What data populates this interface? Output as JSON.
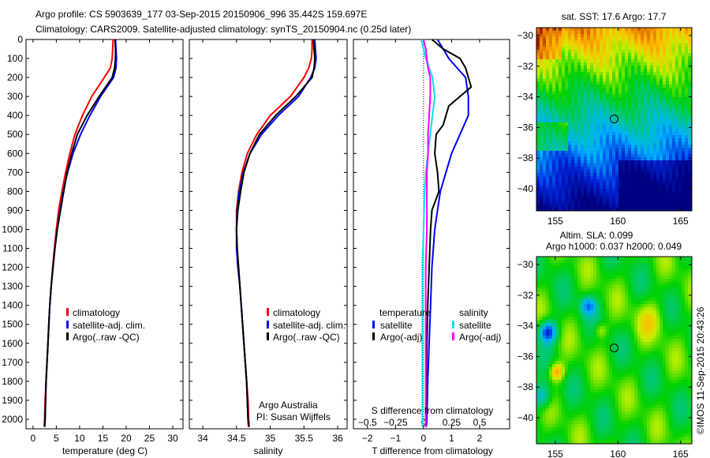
{
  "header": {
    "line1": "Argo profile: CS 5903639_177 03-Sep-2015 20150906_996 35.442S 159.697E",
    "line2": "Climatology: CARS2009. Satellite-adjusted climatology: synTS_20150904.nc (0.25d later)"
  },
  "colors": {
    "climatology": "#ff0000",
    "satellite": "#0000ff",
    "argo": "#000000",
    "sal_satellite": "#00e5ee",
    "sal_argo": "#ff00ff"
  },
  "depth_axis": {
    "ticks": [
      0,
      100,
      200,
      300,
      400,
      500,
      600,
      700,
      800,
      900,
      1000,
      1100,
      1200,
      1300,
      1400,
      1500,
      1600,
      1700,
      1800,
      1900,
      2000
    ],
    "range": [
      0,
      2050
    ]
  },
  "chart_data": [
    {
      "type": "line",
      "id": "temperature",
      "xlabel": "temperature (deg C)",
      "xlim": [
        -1.5,
        32.2
      ],
      "xticks": [
        0,
        5,
        10,
        15,
        20,
        25,
        30
      ],
      "legend": [
        "climatology",
        "satellite-adj. clim.",
        "Argo(..raw -QC)"
      ],
      "series": [
        {
          "name": "climatology",
          "color": "#ff0000",
          "depth": [
            0,
            50,
            100,
            150,
            200,
            300,
            400,
            500,
            600,
            700,
            800,
            900,
            1000,
            1100,
            1200,
            1300,
            1400,
            1500,
            1600,
            1700,
            1800,
            1900,
            2000,
            2040
          ],
          "values": [
            17.2,
            17.1,
            17.0,
            16.6,
            15.3,
            12.6,
            10.6,
            9.0,
            7.9,
            7.0,
            6.2,
            5.5,
            5.0,
            4.6,
            4.2,
            3.9,
            3.6,
            3.4,
            3.2,
            3.0,
            2.8,
            2.6,
            2.5,
            2.4
          ]
        },
        {
          "name": "satellite-adj. clim.",
          "color": "#0000ff",
          "depth": [
            0,
            50,
            100,
            150,
            200,
            300,
            400,
            500,
            600,
            700,
            800,
            900,
            1000,
            1100,
            1200,
            1300,
            1400,
            1500,
            1600,
            1700,
            1800,
            1900,
            2000,
            2040
          ],
          "values": [
            17.7,
            17.8,
            17.9,
            17.8,
            17.3,
            14.5,
            12.2,
            10.2,
            8.6,
            7.4,
            6.5,
            5.8,
            5.2,
            4.7,
            4.3,
            3.9,
            3.6,
            3.4,
            3.2,
            3.0,
            2.8,
            2.7,
            2.6,
            2.5
          ]
        },
        {
          "name": "Argo(..raw -QC)",
          "color": "#000000",
          "depth": [
            0,
            50,
            100,
            150,
            200,
            300,
            400,
            500,
            600,
            700,
            800,
            900,
            1000,
            1100,
            1200,
            1300,
            1400,
            1500,
            1600,
            1700,
            1800,
            1900,
            2000,
            2040
          ],
          "values": [
            17.6,
            17.7,
            17.7,
            17.5,
            17.0,
            14.2,
            11.6,
            9.5,
            8.3,
            7.3,
            6.6,
            5.9,
            5.2,
            4.7,
            4.3,
            3.9,
            3.6,
            3.4,
            3.2,
            3.0,
            2.8,
            2.7,
            2.6,
            2.5
          ]
        }
      ]
    },
    {
      "type": "line",
      "id": "salinity",
      "xlabel": "salinity",
      "xlim": [
        33.8,
        36.14
      ],
      "xticks": [
        34,
        34.5,
        35,
        35.5,
        36
      ],
      "legend": [
        "climatology",
        "satellite-adj. clim.",
        "Argo(..raw -QC)"
      ],
      "annotation": [
        "Argo Australia",
        "PI: Susan Wijffels"
      ],
      "series": [
        {
          "name": "climatology",
          "color": "#ff0000",
          "depth": [
            0,
            50,
            100,
            150,
            200,
            300,
            400,
            500,
            600,
            700,
            800,
            900,
            1000,
            1100,
            1200,
            1300,
            1400,
            1500,
            1600,
            1700,
            1800,
            1900,
            2000,
            2040
          ],
          "values": [
            35.62,
            35.62,
            35.61,
            35.57,
            35.5,
            35.3,
            35.0,
            34.8,
            34.66,
            34.58,
            34.53,
            34.5,
            34.5,
            34.51,
            34.53,
            34.55,
            34.57,
            34.59,
            34.61,
            34.63,
            34.65,
            34.67,
            34.68,
            34.69
          ]
        },
        {
          "name": "satellite-adj. clim.",
          "color": "#0000ff",
          "depth": [
            0,
            50,
            100,
            150,
            200,
            300,
            400,
            500,
            600,
            700,
            800,
            900,
            1000,
            1100,
            1200,
            1300,
            1400,
            1500,
            1600,
            1700,
            1800,
            1900,
            2000,
            2040
          ],
          "values": [
            35.66,
            35.67,
            35.68,
            35.66,
            35.6,
            35.42,
            35.12,
            34.87,
            34.7,
            34.6,
            34.54,
            34.51,
            34.5,
            34.5,
            34.52,
            34.55,
            34.57,
            34.59,
            34.61,
            34.63,
            34.65,
            34.66,
            34.67,
            34.68
          ]
        },
        {
          "name": "Argo(..raw -QC)",
          "color": "#000000",
          "depth": [
            0,
            50,
            100,
            150,
            200,
            300,
            400,
            500,
            600,
            700,
            800,
            900,
            1000,
            1100,
            1200,
            1300,
            1400,
            1500,
            1600,
            1700,
            1800,
            1900,
            2000,
            2040
          ],
          "values": [
            35.64,
            35.65,
            35.66,
            35.65,
            35.62,
            35.38,
            35.08,
            34.84,
            34.7,
            34.61,
            34.56,
            34.52,
            34.5,
            34.51,
            34.53,
            34.55,
            34.57,
            34.59,
            34.61,
            34.63,
            34.65,
            34.66,
            34.67,
            34.68
          ]
        }
      ]
    },
    {
      "type": "line",
      "id": "difference",
      "xlabel": "T difference from climatology",
      "xlabel_top": "S difference from climatology",
      "xlim": [
        -2.5,
        3.07
      ],
      "xticks": [
        -2,
        -1,
        0,
        1,
        2
      ],
      "s_ticks": [
        -0.5,
        -0.25,
        0,
        0.25,
        0.5
      ],
      "s_tick_labels": [
        "-0.5",
        "-0.25",
        "0",
        "0.25",
        "0.5"
      ],
      "legend_temperature": {
        "title": "temperature",
        "items": [
          "satellite",
          "Argo(-adj)"
        ]
      },
      "legend_salinity": {
        "title": "salinity",
        "items": [
          "satellite",
          "Argo(-adj)"
        ]
      },
      "series": [
        {
          "name": "temperature satellite",
          "color": "#0000ff",
          "depth": [
            0,
            50,
            100,
            150,
            200,
            300,
            400,
            500,
            600,
            700,
            800,
            900,
            1000,
            1100,
            1200,
            1400,
            1600,
            1800,
            2000,
            2040
          ],
          "values": [
            0.5,
            0.7,
            0.9,
            1.2,
            1.5,
            1.6,
            1.6,
            1.3,
            1.0,
            0.8,
            0.6,
            0.5,
            0.4,
            0.35,
            0.3,
            0.25,
            0.2,
            0.15,
            0.12,
            0.1
          ]
        },
        {
          "name": "temperature Argo(-adj)",
          "color": "#000000",
          "depth": [
            0,
            50,
            100,
            150,
            200,
            250,
            300,
            350,
            400,
            450,
            500,
            600,
            700,
            800,
            900,
            1000,
            1200,
            1400,
            1600,
            1800,
            2000,
            2040
          ],
          "values": [
            0.3,
            0.7,
            1.3,
            1.5,
            1.6,
            1.7,
            1.3,
            0.9,
            0.8,
            0.7,
            0.45,
            0.4,
            0.5,
            0.55,
            0.3,
            0.25,
            0.2,
            0.15,
            0.12,
            0.1,
            0.08,
            0.08
          ]
        },
        {
          "name": "salinity satellite",
          "color": "#00e5ee",
          "depth": [
            0,
            50,
            100,
            150,
            200,
            300,
            400,
            500,
            600,
            700,
            800,
            1000,
            1200,
            1400,
            1600,
            1800,
            2000,
            2040
          ],
          "values": [
            -0.02,
            0.0,
            0.02,
            0.05,
            0.08,
            0.1,
            0.08,
            0.06,
            0.04,
            0.02,
            0.01,
            0.0,
            -0.01,
            -0.01,
            -0.01,
            -0.01,
            -0.01,
            -0.01
          ]
        },
        {
          "name": "salinity Argo(-adj)",
          "color": "#ff00ff",
          "depth": [
            0,
            50,
            100,
            150,
            200,
            300,
            400,
            500,
            600,
            700,
            800,
            1000,
            1200,
            1400,
            1600,
            1800,
            2000,
            2040
          ],
          "values": [
            0.0,
            0.02,
            0.03,
            0.04,
            0.06,
            0.06,
            0.05,
            0.04,
            0.04,
            0.03,
            0.03,
            0.03,
            0.02,
            0.02,
            0.02,
            0.02,
            0.02,
            0.02
          ]
        }
      ]
    }
  ],
  "maps": [
    {
      "id": "sst",
      "title": "sat. SST: 17.6 Argo: 17.7",
      "lon_ticks": [
        155,
        160,
        165
      ],
      "lat_ticks": [
        -30,
        -32,
        -34,
        -36,
        -38,
        -40
      ],
      "marker": {
        "lon": 159.697,
        "lat": -35.442
      }
    },
    {
      "id": "sla",
      "title_line1": "Altim. SLA: 0.099",
      "title_line2": "Argo h1000: 0.037 h2000: 0.049",
      "lon_ticks": [
        155,
        160,
        165
      ],
      "lat_ticks": [
        -30,
        -32,
        -34,
        -36,
        -38,
        -40
      ],
      "marker": {
        "lon": 159.697,
        "lat": -35.442
      }
    }
  ],
  "footer": {
    "credit": "©IMOS 11-Sep-2015 20:43:26"
  }
}
